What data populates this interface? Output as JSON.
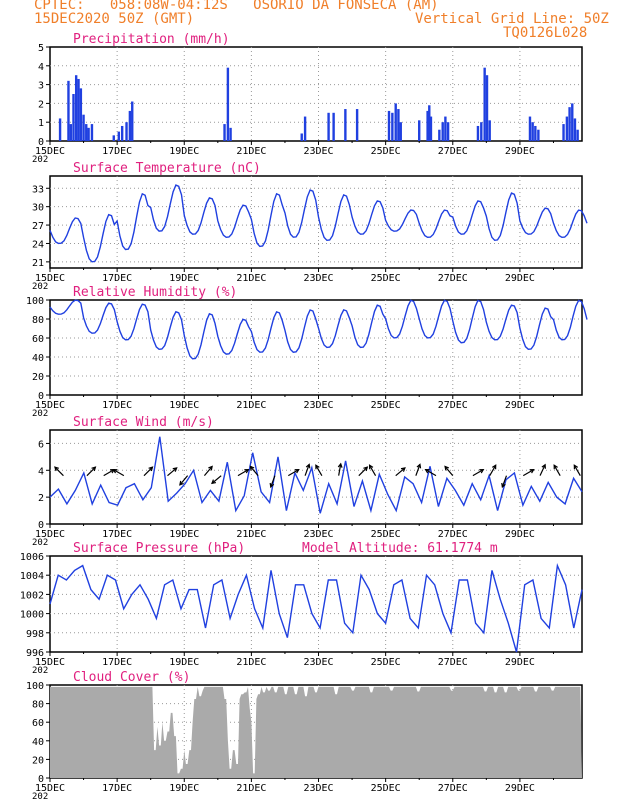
{
  "header": {
    "line1_left": "CPTEC:   058:08W-04:12S   OSORIO DA FONSECA (AM)",
    "line2_left": "15DEC2020 50Z (GMT)",
    "line2_right": "Vertical Grid Line: 50Z",
    "line3_right": "TQ0126L028"
  },
  "colors": {
    "header": "#f07f2a",
    "panel_title": "#e0207f",
    "series": "#2040e0",
    "cloud_fill": "#aaaaaa",
    "wind_arrow": "#000000"
  },
  "x_axis": {
    "tick_labels": [
      "15DEC",
      "17DEC",
      "19DEC",
      "21DEC",
      "23DEC",
      "25DEC",
      "27DEC",
      "29DEC"
    ],
    "year_label": "202",
    "grid": "dotted"
  },
  "chart_data": [
    {
      "type": "bar",
      "title": "Precipitation (mm/h)",
      "ylim": [
        0,
        5
      ],
      "yticks": [
        0,
        1,
        2,
        3,
        4,
        5
      ],
      "unit": "mm/h",
      "events": [
        {
          "t": 0.3,
          "v": 1.2
        },
        {
          "t": 0.55,
          "v": 3.2
        },
        {
          "t": 0.62,
          "v": 0.9
        },
        {
          "t": 0.7,
          "v": 2.5
        },
        {
          "t": 0.78,
          "v": 3.5
        },
        {
          "t": 0.85,
          "v": 3.3
        },
        {
          "t": 0.92,
          "v": 2.8
        },
        {
          "t": 1.0,
          "v": 1.4
        },
        {
          "t": 1.08,
          "v": 0.9
        },
        {
          "t": 1.15,
          "v": 0.7
        },
        {
          "t": 1.25,
          "v": 0.9
        },
        {
          "t": 1.9,
          "v": 0.3
        },
        {
          "t": 2.05,
          "v": 0.5
        },
        {
          "t": 2.15,
          "v": 0.8
        },
        {
          "t": 2.28,
          "v": 1.0
        },
        {
          "t": 2.38,
          "v": 1.6
        },
        {
          "t": 2.45,
          "v": 2.1
        },
        {
          "t": 5.2,
          "v": 0.9
        },
        {
          "t": 5.3,
          "v": 3.9
        },
        {
          "t": 5.38,
          "v": 0.7
        },
        {
          "t": 7.5,
          "v": 0.4
        },
        {
          "t": 7.6,
          "v": 1.3
        },
        {
          "t": 8.3,
          "v": 1.5
        },
        {
          "t": 8.45,
          "v": 1.5
        },
        {
          "t": 8.8,
          "v": 1.7
        },
        {
          "t": 9.15,
          "v": 1.7
        },
        {
          "t": 10.1,
          "v": 1.6
        },
        {
          "t": 10.2,
          "v": 1.5
        },
        {
          "t": 10.3,
          "v": 2.0
        },
        {
          "t": 10.38,
          "v": 1.7
        },
        {
          "t": 10.45,
          "v": 1.0
        },
        {
          "t": 11.0,
          "v": 1.1
        },
        {
          "t": 11.25,
          "v": 1.6
        },
        {
          "t": 11.3,
          "v": 1.9
        },
        {
          "t": 11.35,
          "v": 1.3
        },
        {
          "t": 11.6,
          "v": 0.6
        },
        {
          "t": 11.7,
          "v": 1.0
        },
        {
          "t": 11.78,
          "v": 1.3
        },
        {
          "t": 11.86,
          "v": 1.0
        },
        {
          "t": 12.75,
          "v": 0.8
        },
        {
          "t": 12.85,
          "v": 1.0
        },
        {
          "t": 12.95,
          "v": 3.9
        },
        {
          "t": 13.02,
          "v": 3.5
        },
        {
          "t": 13.1,
          "v": 1.1
        },
        {
          "t": 14.3,
          "v": 1.3
        },
        {
          "t": 14.38,
          "v": 1.0
        },
        {
          "t": 14.46,
          "v": 0.8
        },
        {
          "t": 14.55,
          "v": 0.6
        },
        {
          "t": 15.3,
          "v": 0.9
        },
        {
          "t": 15.4,
          "v": 1.3
        },
        {
          "t": 15.48,
          "v": 1.8
        },
        {
          "t": 15.56,
          "v": 2.0
        },
        {
          "t": 15.64,
          "v": 1.2
        },
        {
          "t": 15.72,
          "v": 0.6
        }
      ]
    },
    {
      "type": "line",
      "title": "Surface Temperature (nC)",
      "ylim": [
        20,
        35
      ],
      "yticks": [
        21,
        24,
        27,
        30,
        33
      ],
      "days": [
        {
          "min": 24.0,
          "max": 28.2
        },
        {
          "min": 21.0,
          "max": 28.8
        },
        {
          "min": 23.0,
          "max": 32.2
        },
        {
          "min": 26.0,
          "max": 33.6
        },
        {
          "min": 25.5,
          "max": 31.5
        },
        {
          "min": 25.0,
          "max": 30.3
        },
        {
          "min": 23.5,
          "max": 32.2
        },
        {
          "min": 25.0,
          "max": 32.8
        },
        {
          "min": 24.5,
          "max": 32.0
        },
        {
          "min": 25.5,
          "max": 31.0
        },
        {
          "min": 26.0,
          "max": 29.5
        },
        {
          "min": 25.0,
          "max": 29.5
        },
        {
          "min": 25.5,
          "max": 31.0
        },
        {
          "min": 24.5,
          "max": 32.3
        },
        {
          "min": 25.5,
          "max": 29.8
        },
        {
          "min": 25.0,
          "max": 29.5
        }
      ]
    },
    {
      "type": "line",
      "title": "Relative Humidity (%)",
      "ylim": [
        0,
        100
      ],
      "yticks": [
        0,
        20,
        40,
        60,
        80,
        100
      ],
      "days": [
        {
          "min": 85,
          "max": 100
        },
        {
          "min": 65,
          "max": 97
        },
        {
          "min": 58,
          "max": 96
        },
        {
          "min": 48,
          "max": 88
        },
        {
          "min": 38,
          "max": 86
        },
        {
          "min": 43,
          "max": 80
        },
        {
          "min": 45,
          "max": 88
        },
        {
          "min": 45,
          "max": 90
        },
        {
          "min": 50,
          "max": 90
        },
        {
          "min": 50,
          "max": 95
        },
        {
          "min": 60,
          "max": 100
        },
        {
          "min": 60,
          "max": 100
        },
        {
          "min": 55,
          "max": 100
        },
        {
          "min": 58,
          "max": 95
        },
        {
          "min": 48,
          "max": 92
        },
        {
          "min": 58,
          "max": 100
        }
      ]
    },
    {
      "type": "line",
      "title": "Surface Wind (m/s)",
      "ylim": [
        0,
        7
      ],
      "yticks": [
        0,
        2,
        4,
        6
      ],
      "series": [
        {
          "values": [
            2,
            2.6,
            1.5,
            2.5,
            3.8,
            1.5,
            2.9,
            1.6,
            1.4,
            2.7,
            3.0,
            1.8,
            2.7,
            6.5,
            1.7,
            2.3,
            3.0,
            4.0,
            1.6,
            2.5,
            1.7,
            4.6,
            1.0,
            2.1,
            5.3,
            2.4,
            1.6,
            5.0,
            1.0,
            3.8,
            2.5,
            4.2,
            0.8,
            3.0,
            1.5,
            4.7,
            1.3,
            3.2,
            1.0,
            3.7,
            2.2,
            1.0,
            3.5,
            3.0,
            1.6,
            4.3,
            1.3,
            3.4,
            2.5,
            1.4,
            3.0,
            1.8,
            3.6,
            1.0,
            3.3,
            3.8,
            1.4,
            2.8,
            1.7,
            3.1,
            2.0,
            1.5,
            3.4,
            2.4
          ]
        }
      ],
      "arrows": [
        {
          "t": 0.4,
          "dir": 315
        },
        {
          "t": 1.1,
          "dir": 45
        },
        {
          "t": 1.6,
          "dir": 60
        },
        {
          "t": 2.2,
          "dir": 300
        },
        {
          "t": 2.8,
          "dir": 45
        },
        {
          "t": 3.5,
          "dir": 50
        },
        {
          "t": 4.1,
          "dir": 220
        },
        {
          "t": 4.6,
          "dir": 40
        },
        {
          "t": 5.1,
          "dir": 230
        },
        {
          "t": 5.6,
          "dir": 60
        },
        {
          "t": 6.2,
          "dir": 320
        },
        {
          "t": 6.7,
          "dir": 200
        },
        {
          "t": 7.1,
          "dir": 60
        },
        {
          "t": 7.6,
          "dir": 20
        },
        {
          "t": 8.1,
          "dir": 330
        },
        {
          "t": 8.6,
          "dir": 10
        },
        {
          "t": 9.2,
          "dir": 45
        },
        {
          "t": 9.7,
          "dir": 330
        },
        {
          "t": 10.3,
          "dir": 50
        },
        {
          "t": 10.9,
          "dir": 20
        },
        {
          "t": 11.5,
          "dir": 300
        },
        {
          "t": 12.0,
          "dir": 320
        },
        {
          "t": 12.6,
          "dir": 60
        },
        {
          "t": 13.1,
          "dir": 30
        },
        {
          "t": 13.6,
          "dir": 200
        },
        {
          "t": 14.1,
          "dir": 60
        },
        {
          "t": 14.6,
          "dir": 25
        },
        {
          "t": 15.2,
          "dir": 330
        },
        {
          "t": 15.8,
          "dir": 330
        }
      ]
    },
    {
      "type": "line",
      "title": "Surface Pressure (hPa)",
      "annotation": "Model Altitude: 61.1774 m",
      "ylim": [
        996,
        1006
      ],
      "yticks": [
        996,
        998,
        1000,
        1002,
        1004,
        1006
      ],
      "series": [
        {
          "values": [
            1001,
            1004,
            1003.5,
            1004.5,
            1005,
            1002.5,
            1001.5,
            1004,
            1003.5,
            1000.5,
            1002,
            1003,
            1001.5,
            999.5,
            1003,
            1003.5,
            1000.5,
            1002.5,
            1002.5,
            998.5,
            1003,
            1003.5,
            999.5,
            1002,
            1004,
            1000.5,
            998.5,
            1004.5,
            1000,
            997.5,
            1003,
            1003,
            1000,
            998.5,
            1003.5,
            1003.5,
            999,
            998,
            1004,
            1002.5,
            1000,
            999,
            1003,
            1003.5,
            999.5,
            998.5,
            1004,
            1003,
            1000,
            998,
            1003.5,
            1003.5,
            999,
            998,
            1004.5,
            1001.5,
            999,
            996,
            1003,
            1003.5,
            999.5,
            998.5,
            1005,
            1003,
            998.5,
            1002.5
          ]
        }
      ]
    },
    {
      "type": "area",
      "title": "Cloud Cover (%)",
      "ylim": [
        0,
        100
      ],
      "yticks": [
        0,
        20,
        40,
        60,
        80,
        100
      ],
      "baseline": 98,
      "dips": [
        {
          "t": 3.1,
          "v": 30
        },
        {
          "t": 3.2,
          "v": 55
        },
        {
          "t": 3.25,
          "v": 35
        },
        {
          "t": 3.3,
          "v": 60
        },
        {
          "t": 3.4,
          "v": 40
        },
        {
          "t": 3.5,
          "v": 50
        },
        {
          "t": 3.6,
          "v": 70
        },
        {
          "t": 3.7,
          "v": 45
        },
        {
          "t": 3.75,
          "v": 55
        },
        {
          "t": 3.8,
          "v": 5
        },
        {
          "t": 3.85,
          "v": 20
        },
        {
          "t": 3.9,
          "v": 10
        },
        {
          "t": 3.95,
          "v": 30
        },
        {
          "t": 4.0,
          "v": 60
        },
        {
          "t": 4.05,
          "v": 15
        },
        {
          "t": 4.15,
          "v": 30
        },
        {
          "t": 4.2,
          "v": 60
        },
        {
          "t": 4.3,
          "v": 85
        },
        {
          "t": 4.45,
          "v": 88
        },
        {
          "t": 4.5,
          "v": 94
        },
        {
          "t": 5.2,
          "v": 85
        },
        {
          "t": 5.3,
          "v": 40
        },
        {
          "t": 5.35,
          "v": 10
        },
        {
          "t": 5.4,
          "v": 50
        },
        {
          "t": 5.45,
          "v": 30
        },
        {
          "t": 5.5,
          "v": 70
        },
        {
          "t": 5.55,
          "v": 15
        },
        {
          "t": 5.6,
          "v": 85
        },
        {
          "t": 5.7,
          "v": 90
        },
        {
          "t": 5.8,
          "v": 92
        },
        {
          "t": 5.95,
          "v": 75
        },
        {
          "t": 6.0,
          "v": 60
        },
        {
          "t": 6.05,
          "v": 5
        },
        {
          "t": 6.1,
          "v": 85
        },
        {
          "t": 6.2,
          "v": 90
        },
        {
          "t": 6.35,
          "v": 92
        },
        {
          "t": 6.5,
          "v": 94
        },
        {
          "t": 6.7,
          "v": 92
        },
        {
          "t": 7.0,
          "v": 90
        },
        {
          "t": 7.3,
          "v": 90
        },
        {
          "t": 7.6,
          "v": 88
        },
        {
          "t": 7.9,
          "v": 92
        },
        {
          "t": 8.5,
          "v": 90
        },
        {
          "t": 9.0,
          "v": 94
        },
        {
          "t": 9.6,
          "v": 92
        },
        {
          "t": 10.2,
          "v": 94
        },
        {
          "t": 11.0,
          "v": 93
        },
        {
          "t": 12.0,
          "v": 94
        },
        {
          "t": 13.0,
          "v": 93
        },
        {
          "t": 13.3,
          "v": 92
        },
        {
          "t": 13.6,
          "v": 92
        },
        {
          "t": 14.0,
          "v": 94
        },
        {
          "t": 14.5,
          "v": 93
        },
        {
          "t": 15.0,
          "v": 94
        }
      ]
    }
  ]
}
